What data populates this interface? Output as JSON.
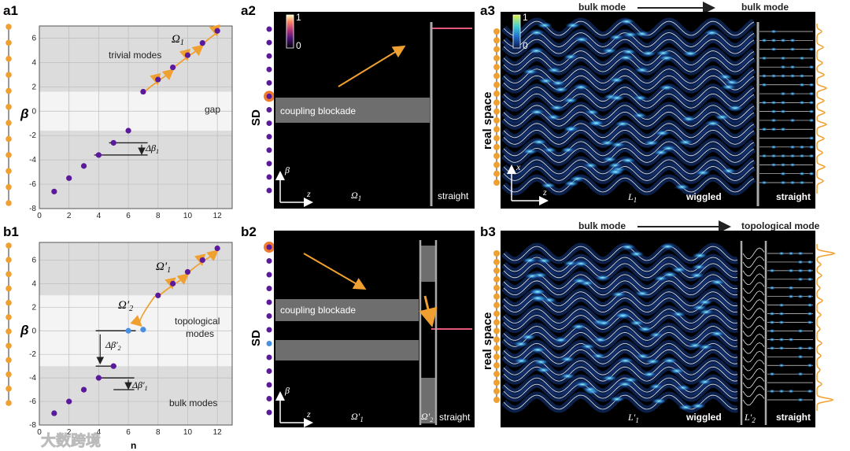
{
  "panels": {
    "a1": "a1",
    "a2": "a2",
    "a3": "a3",
    "b1": "b1",
    "b2": "b2",
    "b3": "b3"
  },
  "a1": {
    "ylabel": "β",
    "ann_trivial": "trivial modes",
    "ann_gap": "gap",
    "ann_omega": "Ω",
    "ann_omega_sub": "1",
    "ann_dbeta": "Δβ",
    "ann_dbeta_sub": "1"
  },
  "b1": {
    "ylabel": "β",
    "xlabel": "n",
    "ann_topo1": "topological",
    "ann_topo2": "modes",
    "ann_bulk": "bulk modes",
    "ann_omega1": "Ω′",
    "ann_omega1_sub": "1",
    "ann_omega2": "Ω′",
    "ann_omega2_sub": "2",
    "ann_dbeta2": "Δβ′",
    "ann_dbeta2_sub": "2",
    "ann_dbeta1": "Δβ′",
    "ann_dbeta1_sub": "1"
  },
  "a2": {
    "cb_max": "1",
    "cb_min": "0",
    "side_label": "SD",
    "block_label": "coupling blockade",
    "omega": "Ω",
    "omega_sub": "1",
    "straight": "straight",
    "beta_axis": "β",
    "z_axis": "z"
  },
  "b2": {
    "side_label": "SD",
    "block_label": "coupling blockade",
    "omega1": "Ω′",
    "omega1_sub": "1",
    "omega2": "Ω′",
    "omega2_sub": "2",
    "straight": "straight",
    "beta_axis": "β",
    "z_axis": "z"
  },
  "a3": {
    "top_left": "bulk mode",
    "top_right": "bulk mode",
    "side_label": "real space",
    "cb_max": "1",
    "cb_min": "0",
    "L": "L",
    "L_sub": "1",
    "wiggled": "wiggled",
    "straight": "straight",
    "x_axis": "x",
    "z_axis": "z"
  },
  "b3": {
    "top_left": "bulk mode",
    "top_right": "topological mode",
    "side_label": "real space",
    "L1": "L′",
    "L1_sub": "1",
    "L2": "L′",
    "L2_sub": "2",
    "wiggled": "wiggled",
    "straight": "straight"
  },
  "watermark": "大数跨境",
  "chart_data": [
    {
      "type": "scatter",
      "panel": "a1",
      "xlim": [
        0,
        13
      ],
      "ylim": [
        -8,
        7
      ],
      "xticks": [
        0,
        2,
        4,
        6,
        8,
        10,
        12
      ],
      "yticks": [
        -8,
        -6,
        -4,
        -2,
        0,
        2,
        4,
        6
      ],
      "grid": true,
      "series": [
        {
          "x": [
            1,
            2,
            3,
            4,
            5,
            6
          ],
          "y": [
            -6.6,
            -5.5,
            -4.5,
            -3.6,
            -2.6,
            -1.6
          ]
        },
        {
          "x": [
            7,
            8,
            9,
            10,
            11,
            12
          ],
          "y": [
            1.6,
            2.6,
            3.6,
            4.6,
            5.6,
            6.6
          ]
        }
      ],
      "bands": [
        {
          "y0": 1.6,
          "y1": 7,
          "color": "#dcdcdc"
        },
        {
          "y0": -1.6,
          "y1": 1.6,
          "color": "#f4f4f4"
        },
        {
          "y0": -8,
          "y1": -1.6,
          "color": "#dcdcdc"
        }
      ]
    },
    {
      "type": "scatter",
      "panel": "b1",
      "xlim": [
        0,
        13
      ],
      "ylim": [
        -8,
        7.5
      ],
      "xticks": [
        0,
        2,
        4,
        6,
        8,
        10,
        12
      ],
      "yticks": [
        -8,
        -6,
        -4,
        -2,
        0,
        2,
        4,
        6
      ],
      "grid": true,
      "series": [
        {
          "x": [
            1,
            2,
            3,
            4,
            5
          ],
          "y": [
            -7,
            -6,
            -5,
            -4,
            -3
          ]
        },
        {
          "x": [
            6,
            7
          ],
          "y": [
            0,
            0.1
          ],
          "color": "#4a90e2"
        },
        {
          "x": [
            8,
            9,
            10,
            11,
            12
          ],
          "y": [
            3,
            4,
            5,
            6,
            7
          ]
        }
      ],
      "bands": [
        {
          "y0": 3,
          "y1": 7.5,
          "color": "#dcdcdc"
        },
        {
          "y0": -3,
          "y1": 3,
          "color": "#f4f4f4"
        },
        {
          "y0": -8,
          "y1": -3,
          "color": "#dcdcdc"
        }
      ]
    }
  ]
}
